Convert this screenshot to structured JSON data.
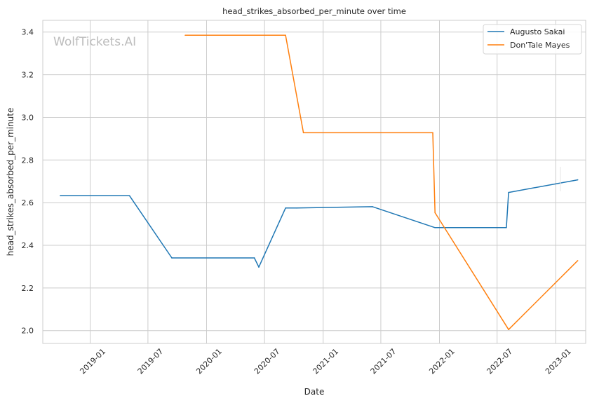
{
  "chart_data": {
    "type": "line",
    "title": "head_strikes_absorbed_per_minute over time",
    "xlabel": "Date",
    "ylabel": "head_strikes_absorbed_per_minute",
    "watermark": "WolfTickets.AI",
    "x_range": [
      "2018-08-05",
      "2023-04-05"
    ],
    "ylim": [
      1.94,
      3.455
    ],
    "x_ticks": [
      "2019-01",
      "2019-07",
      "2020-01",
      "2020-07",
      "2021-01",
      "2021-07",
      "2022-01",
      "2022-07",
      "2023-01"
    ],
    "y_ticks": [
      "2.0",
      "2.2",
      "2.4",
      "2.6",
      "2.8",
      "3.0",
      "3.2",
      "3.4"
    ],
    "grid": true,
    "legend_position": "top-right",
    "series": [
      {
        "name": "Augusto Sakai",
        "color": "#1f77b4",
        "points": [
          {
            "x": "2018-09-29",
            "y": 2.633
          },
          {
            "x": "2019-05-04",
            "y": 2.633
          },
          {
            "x": "2019-09-14",
            "y": 2.341
          },
          {
            "x": "2020-05-30",
            "y": 2.341
          },
          {
            "x": "2020-06-13",
            "y": 2.298
          },
          {
            "x": "2020-09-05",
            "y": 2.575
          },
          {
            "x": "2020-10-10",
            "y": 2.575
          },
          {
            "x": "2021-06-05",
            "y": 2.581
          },
          {
            "x": "2021-12-18",
            "y": 2.483
          },
          {
            "x": "2022-07-30",
            "y": 2.483
          },
          {
            "x": "2022-08-06",
            "y": 2.648
          },
          {
            "x": "2023-03-11",
            "y": 2.707
          }
        ]
      },
      {
        "name": "Don'Tale Mayes",
        "color": "#ff7f0e",
        "points": [
          {
            "x": "2019-10-26",
            "y": 3.385
          },
          {
            "x": "2020-09-05",
            "y": 3.385
          },
          {
            "x": "2020-10-31",
            "y": 2.928
          },
          {
            "x": "2021-12-11",
            "y": 2.928
          },
          {
            "x": "2021-12-18",
            "y": 2.553
          },
          {
            "x": "2022-08-06",
            "y": 2.005
          },
          {
            "x": "2023-03-11",
            "y": 2.328
          }
        ]
      }
    ]
  }
}
